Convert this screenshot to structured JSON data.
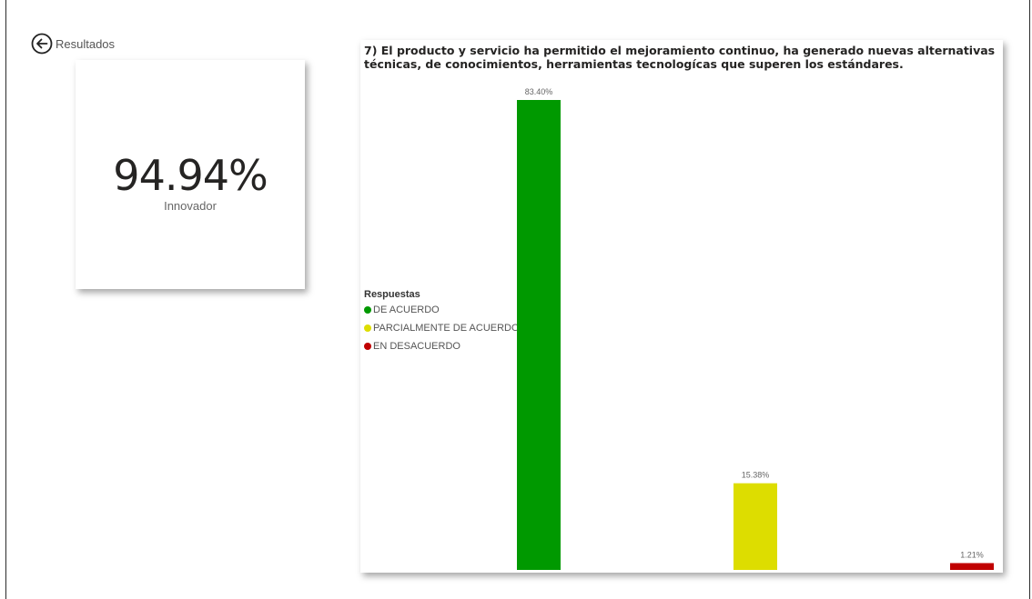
{
  "nav": {
    "back_label": "Resultados"
  },
  "kpi": {
    "value": "94.94%",
    "label": "Innovador"
  },
  "chart": {
    "title": "7) El producto y servicio ha permitido el mejoramiento continuo, ha generado nuevas alternativas técnicas, de conocimientos, herramientas tecnologícas que superen los estándares."
  },
  "legend": {
    "title": "Respuestas",
    "items": [
      {
        "label": "DE ACUERDO",
        "color": "#009900"
      },
      {
        "label": "PARCIALMENTE DE ACUERDO",
        "color": "#dddd00"
      },
      {
        "label": "EN DESACUERDO",
        "color": "#c00000"
      }
    ]
  },
  "chart_data": {
    "type": "bar",
    "categories": [
      "DE ACUERDO",
      "PARCIALMENTE DE ACUERDO",
      "EN DESACUERDO"
    ],
    "values": [
      83.4,
      15.38,
      1.21
    ],
    "data_labels": [
      "83.40%",
      "15.38%",
      "1.21%"
    ],
    "colors": [
      "#009900",
      "#dddd00",
      "#c00000"
    ],
    "ylim": [
      0,
      83.4
    ],
    "title": "7) El producto y servicio ha permitido el mejoramiento continuo, ha generado nuevas alternativas técnicas, de conocimientos, herramientas tecnologícas que superen los estándares.",
    "xlabel": "",
    "ylabel": "",
    "grid": false,
    "legend_position": "left"
  }
}
